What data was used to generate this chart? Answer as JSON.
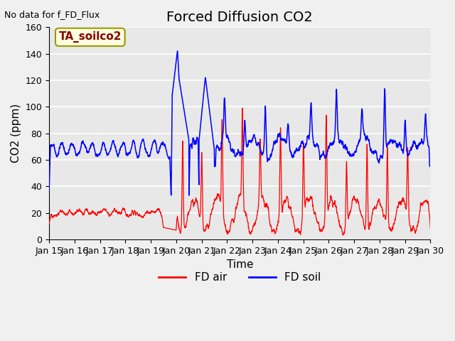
{
  "title": "Forced Diffusion CO2",
  "top_left_text": "No data for f_FD_Flux",
  "annotation_box": "TA_soilco2",
  "ylabel": "CO2 (ppm)",
  "xlabel": "Time",
  "ylim": [
    0,
    160
  ],
  "yticks": [
    0,
    20,
    40,
    60,
    80,
    100,
    120,
    140,
    160
  ],
  "xtick_labels": [
    "Jan 15",
    "Jan 16",
    "Jan 17",
    "Jan 18",
    "Jan 19",
    "Jan 20",
    "Jan 21",
    "Jan 22",
    "Jan 23",
    "Jan 24",
    "Jan 25",
    "Jan 26",
    "Jan 27",
    "Jan 28",
    "Jan 29",
    "Jan 30"
  ],
  "fd_air_color": "#ff0000",
  "fd_soil_color": "#0000ff",
  "background_color": "#f0f0f0",
  "plot_bg_color": "#e8e8e8",
  "grid_color": "#ffffff",
  "legend_fd_air": "FD air",
  "legend_fd_soil": "FD soil",
  "title_fontsize": 14,
  "axis_label_fontsize": 11,
  "tick_fontsize": 9,
  "annotation_fontsize": 11
}
